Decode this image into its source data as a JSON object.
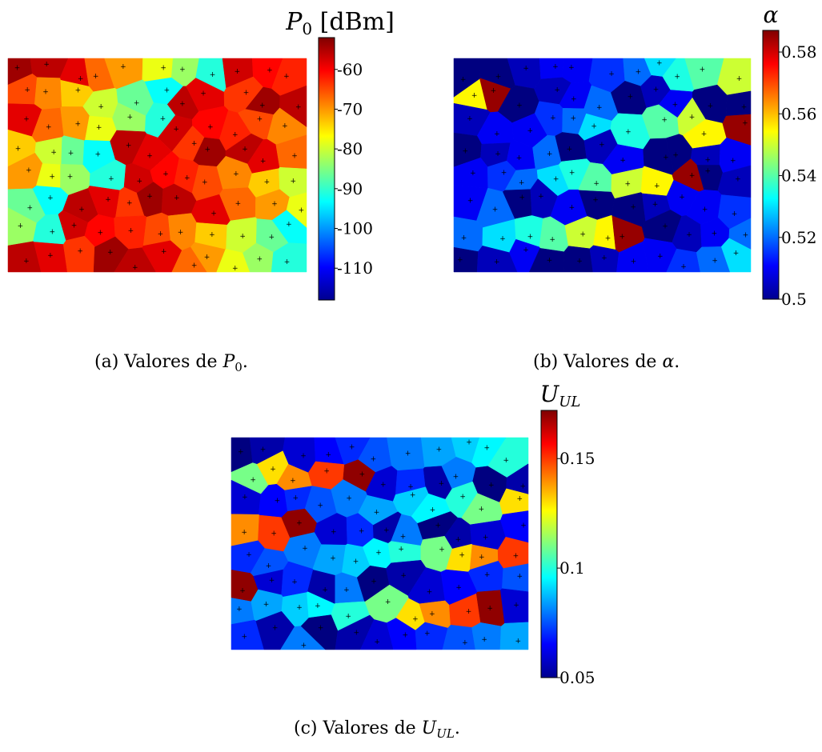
{
  "chart_data": [
    {
      "type": "heatmap",
      "subtype": "voronoi-cell-map",
      "colormap": "jet",
      "colorbar_title": "P0 [dBm]",
      "colorbar_range": [
        -118,
        -52
      ],
      "colorbar_ticks": [
        -60,
        -70,
        -80,
        -90,
        -100,
        -110
      ],
      "cell_values_sample": [
        -55,
        -58,
        -62,
        -75,
        -80,
        -92,
        -100,
        -112,
        -60,
        -65,
        -68,
        -72,
        -78,
        -85,
        -95,
        -105,
        -115,
        -58,
        -62,
        -70
      ],
      "caption": "(a) Valores de P0."
    },
    {
      "type": "heatmap",
      "subtype": "voronoi-cell-map",
      "colormap": "jet",
      "colorbar_title": "α",
      "colorbar_range": [
        0.5,
        0.587
      ],
      "colorbar_ticks": [
        0.5,
        0.52,
        0.54,
        0.56,
        0.58
      ],
      "colorbar_tick_labels": [
        "0.5",
        "0.52",
        "0.54",
        "0.56",
        "0.58"
      ],
      "cell_values_sample": [
        0.5,
        0.5,
        0.505,
        0.51,
        0.51,
        0.515,
        0.52,
        0.53,
        0.535,
        0.54,
        0.55,
        0.555,
        0.585,
        0.5,
        0.505,
        0.51,
        0.52,
        0.5,
        0.505,
        0.51
      ],
      "caption": "(b) Valores de α."
    },
    {
      "type": "heatmap",
      "subtype": "voronoi-cell-map",
      "colormap": "jet",
      "colorbar_title": "UUL",
      "colorbar_range": [
        0.05,
        0.172
      ],
      "colorbar_ticks": [
        0.15,
        0.1,
        0.05
      ],
      "colorbar_tick_labels": [
        "0.15",
        "0.1",
        "0.05"
      ],
      "cell_values_sample": [
        0.05,
        0.055,
        0.06,
        0.065,
        0.07,
        0.075,
        0.08,
        0.085,
        0.09,
        0.095,
        0.1,
        0.11,
        0.13,
        0.14,
        0.15,
        0.17,
        0.06,
        0.07,
        0.055,
        0.08
      ],
      "caption": "(c) Valores de UUL."
    }
  ]
}
